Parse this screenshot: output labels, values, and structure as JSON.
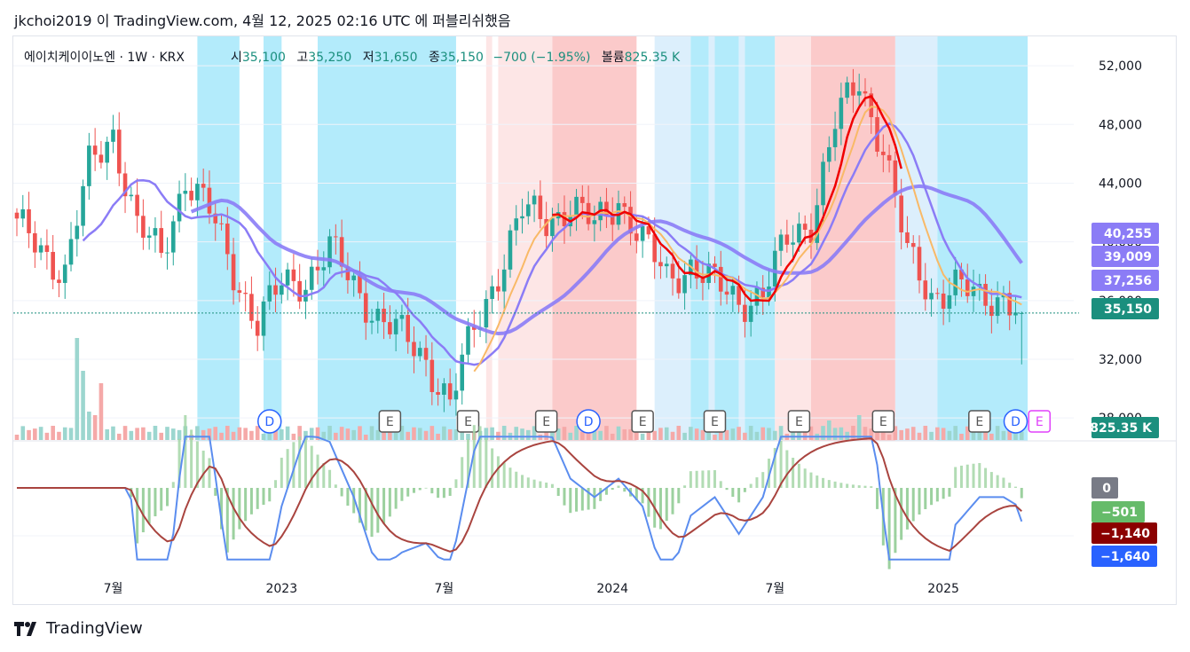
{
  "header": {
    "publish_line": "jkchoi2019 이 TradingView.com, 4월 12, 2025 02:16 UTC 에 퍼블리쉬했음"
  },
  "legend": {
    "symbol": "에이치케이이노엔 · 1W · KRX",
    "open_label": "시",
    "open_value": "35,100",
    "high_label": "고",
    "high_value": "35,250",
    "low_label": "저",
    "low_value": "31,650",
    "close_label": "종",
    "close_value": "35,150",
    "change": "−700 (−1.95%)",
    "volume_label": "볼륨",
    "volume_value": "825.35 K"
  },
  "brand": {
    "name": "TradingView"
  },
  "colors": {
    "up": "#26a69a",
    "down": "#ef5350",
    "ma_purple": "#8b7cf6",
    "ma_orange": "#f9b967",
    "ma_red": "#f00000",
    "macd_blue": "#5b8def",
    "signal_brown": "#a9443f",
    "bg_blue": "#b3ebfb",
    "bg_lightblue": "#dceffc",
    "bg_red": "#fbcaca",
    "bg_pink": "#fde6e6",
    "event_E": "#555555",
    "event_D": "#2962ff",
    "event_E_future": "#e040fb"
  },
  "price_axis": {
    "ticks": [
      "52,000",
      "48,000",
      "44,000",
      "40,000",
      "36,000",
      "32,000",
      "28,000"
    ],
    "badges": [
      {
        "text": "40,255",
        "color": "#8b7cf6"
      },
      {
        "text": "39,009",
        "color": "#8b7cf6"
      },
      {
        "text": "37,256",
        "color": "#8b7cf6"
      },
      {
        "text": "35,150",
        "color": "#1b8f7e"
      },
      {
        "text": "825.35 K",
        "color": "#1b8f7e"
      }
    ]
  },
  "macd_axis": {
    "badges": [
      {
        "text": "0",
        "color": "#787b86"
      },
      {
        "text": "−501",
        "color": "#66bb6a"
      },
      {
        "text": "−1,140",
        "color": "#8b0000"
      },
      {
        "text": "−1,640",
        "color": "#2962ff"
      }
    ]
  },
  "time_axis": {
    "ticks": [
      "7월",
      "2023",
      "7월",
      "2024",
      "7월",
      "2025"
    ]
  },
  "events": [
    "D",
    "E",
    "E",
    "E",
    "D",
    "E",
    "E",
    "E",
    "E",
    "E",
    "D",
    "E"
  ],
  "chart_data": {
    "type": "candlestick",
    "timeframe": "1W",
    "ylim": [
      26500,
      54000
    ],
    "last": {
      "open": 35100,
      "high": 35250,
      "low": 31650,
      "close": 35150,
      "volume": "825.35K"
    },
    "anchors": [
      {
        "x": 0,
        "v": 41000
      },
      {
        "x": 8,
        "v": 38000
      },
      {
        "x": 12,
        "v": 45000
      },
      {
        "x": 16,
        "v": 47500
      },
      {
        "x": 20,
        "v": 41000
      },
      {
        "x": 24,
        "v": 39000
      },
      {
        "x": 28,
        "v": 44500
      },
      {
        "x": 32,
        "v": 42000
      },
      {
        "x": 36,
        "v": 38000
      },
      {
        "x": 40,
        "v": 34500
      },
      {
        "x": 44,
        "v": 37000
      },
      {
        "x": 48,
        "v": 37500
      },
      {
        "x": 52,
        "v": 39500
      },
      {
        "x": 56,
        "v": 37000
      },
      {
        "x": 60,
        "v": 35000
      },
      {
        "x": 64,
        "v": 33500
      },
      {
        "x": 68,
        "v": 32000
      },
      {
        "x": 72,
        "v": 29000
      },
      {
        "x": 76,
        "v": 34000
      },
      {
        "x": 80,
        "v": 38000
      },
      {
        "x": 84,
        "v": 42000
      },
      {
        "x": 88,
        "v": 41500
      },
      {
        "x": 92,
        "v": 42500
      },
      {
        "x": 96,
        "v": 41000
      },
      {
        "x": 100,
        "v": 43000
      },
      {
        "x": 104,
        "v": 40000
      },
      {
        "x": 108,
        "v": 37500
      },
      {
        "x": 112,
        "v": 38500
      },
      {
        "x": 116,
        "v": 37000
      },
      {
        "x": 120,
        "v": 36000
      },
      {
        "x": 124,
        "v": 36500
      },
      {
        "x": 128,
        "v": 40000
      },
      {
        "x": 132,
        "v": 41500
      },
      {
        "x": 136,
        "v": 48000
      },
      {
        "x": 140,
        "v": 51000
      },
      {
        "x": 144,
        "v": 46500
      },
      {
        "x": 148,
        "v": 39000
      },
      {
        "x": 152,
        "v": 36500
      },
      {
        "x": 156,
        "v": 37000
      },
      {
        "x": 160,
        "v": 36000
      },
      {
        "x": 164,
        "v": 36500
      },
      {
        "x": 167,
        "v": 35150
      }
    ],
    "moving_averages": [
      {
        "color": "#8b7cf6",
        "last": 40255
      },
      {
        "color": "#8b7cf6",
        "last": 39009
      },
      {
        "color": "#8b7cf6",
        "last": 37256
      }
    ],
    "macd": {
      "macd_last": -1640,
      "signal_last": -1140,
      "histogram_last": -501
    }
  }
}
